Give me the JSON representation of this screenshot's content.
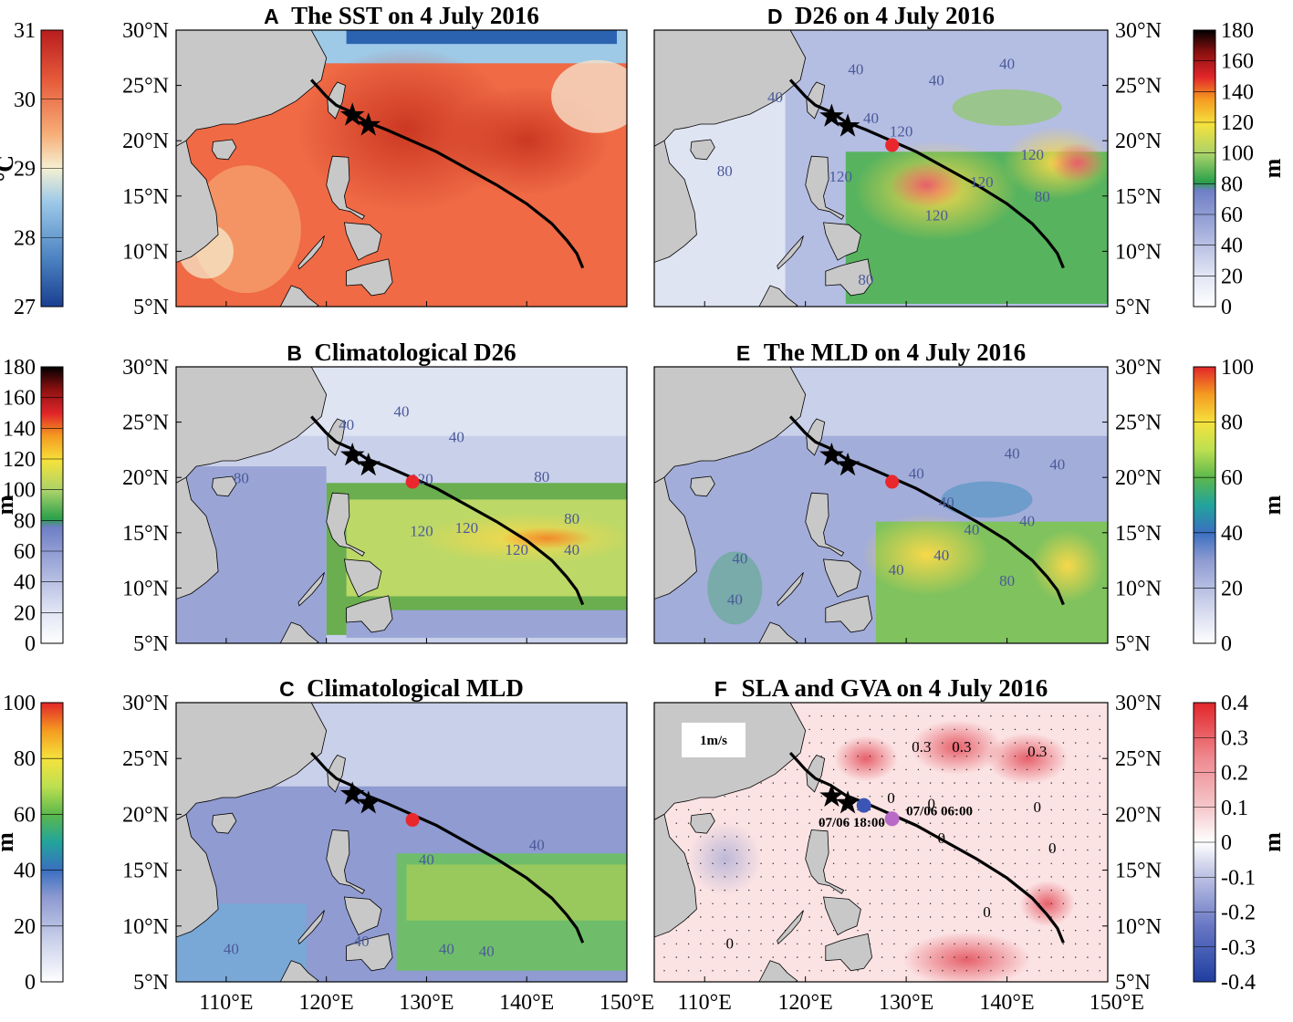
{
  "chart_data": {
    "type": "heatmap",
    "x_ticks": [
      "110°E",
      "120°E",
      "130°E",
      "140°E",
      "150°E"
    ],
    "y_ticks": [
      "30°N",
      "25°N",
      "20°N",
      "15°N",
      "10°N",
      "5°N"
    ],
    "xlim": [
      105,
      150
    ],
    "ylim": [
      5,
      30
    ],
    "track": [
      [
        118.5,
        25.5
      ],
      [
        120,
        24
      ],
      [
        121,
        23.2
      ],
      [
        122.5,
        22.6
      ],
      [
        124,
        21.7
      ],
      [
        126,
        21
      ],
      [
        128.5,
        20
      ],
      [
        131,
        19
      ],
      [
        134,
        17.5
      ],
      [
        137,
        16
      ],
      [
        140,
        14.3
      ],
      [
        142.5,
        12.5
      ],
      [
        144,
        11
      ],
      [
        145,
        9.8
      ],
      [
        145.6,
        8.5
      ]
    ],
    "panels": [
      {
        "id": "A",
        "title": "The SST on 4 July 2016",
        "colorbar": {
          "ticks": [
            "31",
            "30",
            "29",
            "28",
            "27"
          ],
          "range": [
            27,
            31
          ],
          "unit": "°C"
        },
        "stars": [
          [
            122.6,
            22.3
          ],
          [
            124.2,
            21.4
          ]
        ],
        "contour_labels": []
      },
      {
        "id": "B",
        "title": "Climatological D26",
        "colorbar": {
          "ticks": [
            "180",
            "160",
            "140",
            "120",
            "100",
            "80",
            "60",
            "40",
            "20",
            "0"
          ],
          "range": [
            0,
            180
          ],
          "unit": "m"
        },
        "stars": [
          [
            122.6,
            22.0
          ],
          [
            124.2,
            21.1
          ]
        ],
        "red_dot": [
          128.6,
          19.6
        ],
        "contour_labels": [
          "40",
          "40",
          "40",
          "80",
          "80",
          "120",
          "120",
          "120",
          "120",
          "80",
          "40"
        ]
      },
      {
        "id": "C",
        "title": "Climatological MLD",
        "colorbar": {
          "ticks": [
            "100",
            "80",
            "60",
            "40",
            "20",
            "0"
          ],
          "range": [
            0,
            100
          ],
          "unit": "m"
        },
        "stars": [
          [
            122.6,
            21.8
          ],
          [
            124.2,
            21.0
          ]
        ],
        "red_dot": [
          128.6,
          19.5
        ],
        "contour_labels": [
          "40",
          "40",
          "40",
          "40",
          "40",
          "40"
        ]
      },
      {
        "id": "D",
        "title": "D26 on 4 July 2016",
        "colorbar": {
          "ticks": [
            "180",
            "160",
            "140",
            "120",
            "100",
            "80",
            "60",
            "40",
            "20",
            "0"
          ],
          "range": [
            0,
            180
          ],
          "unit": "m"
        },
        "stars": [
          [
            122.6,
            22.2
          ],
          [
            124.2,
            21.3
          ]
        ],
        "red_dot": [
          128.6,
          19.6
        ],
        "contour_labels": [
          "40",
          "40",
          "40",
          "40",
          "40",
          "80",
          "120",
          "120",
          "120",
          "120",
          "80",
          "120",
          "80"
        ]
      },
      {
        "id": "E",
        "title": "The MLD on 4 July 2016",
        "colorbar": {
          "ticks": [
            "100",
            "80",
            "60",
            "40",
            "20",
            "0"
          ],
          "range": [
            0,
            100
          ],
          "unit": "m"
        },
        "stars": [
          [
            122.6,
            22.0
          ],
          [
            124.2,
            21.1
          ]
        ],
        "red_dot": [
          128.6,
          19.6
        ],
        "contour_labels": [
          "40",
          "40",
          "40",
          "40",
          "40",
          "40",
          "40",
          "40",
          "40",
          "40",
          "80"
        ]
      },
      {
        "id": "F",
        "title": "SLA and GVA on 4 July 2016",
        "colorbar": {
          "ticks": [
            "0.4",
            "0.3",
            "0.2",
            "0.1",
            "0",
            "-0.1",
            "-0.2",
            "-0.3",
            "-0.4"
          ],
          "range": [
            -0.4,
            0.4
          ],
          "unit": "m"
        },
        "stars": [
          [
            122.6,
            21.6
          ],
          [
            124.2,
            21.0
          ]
        ],
        "blue_dot": [
          125.8,
          20.8
        ],
        "purple_dot": [
          128.6,
          19.6
        ],
        "legend_vector": "1m/s",
        "annotations": [
          "07/06 18:00",
          "07/06 06:00"
        ],
        "contour_labels": [
          "0.3",
          "0.3",
          "0.3",
          "0",
          "0",
          "0",
          "0",
          "0",
          "0",
          "0"
        ]
      }
    ]
  },
  "colors": {
    "sst_scale": [
      "#1a3f91",
      "#4d85c3",
      "#9ecae8",
      "#f5f0d2",
      "#f7b07a",
      "#e65a3a",
      "#b81d1e"
    ],
    "d26_scale": [
      "#ffffff",
      "#c9d0ea",
      "#8f9bd1",
      "#5a8ed0",
      "#2aa04a",
      "#a8d26a",
      "#f5e23c",
      "#f59b20",
      "#e2262a",
      "#8a1010",
      "#000000"
    ],
    "mld_scale": [
      "#ffffff",
      "#c9d0ea",
      "#8f9bd1",
      "#3a6fc0",
      "#22a49c",
      "#5cb84c",
      "#bde050",
      "#f5e23c",
      "#f59b20",
      "#e2262a"
    ],
    "sla_scale": [
      "#1f3ea0",
      "#6877c4",
      "#b8bde2",
      "#ffffff",
      "#f6c9cc",
      "#ee8a90",
      "#e2262a"
    ],
    "land": "#c8c8c8",
    "track": "#000000",
    "red_dot": "#e8282c",
    "blue_dot": "#3a55b4",
    "purple_dot": "#b86ac6"
  }
}
